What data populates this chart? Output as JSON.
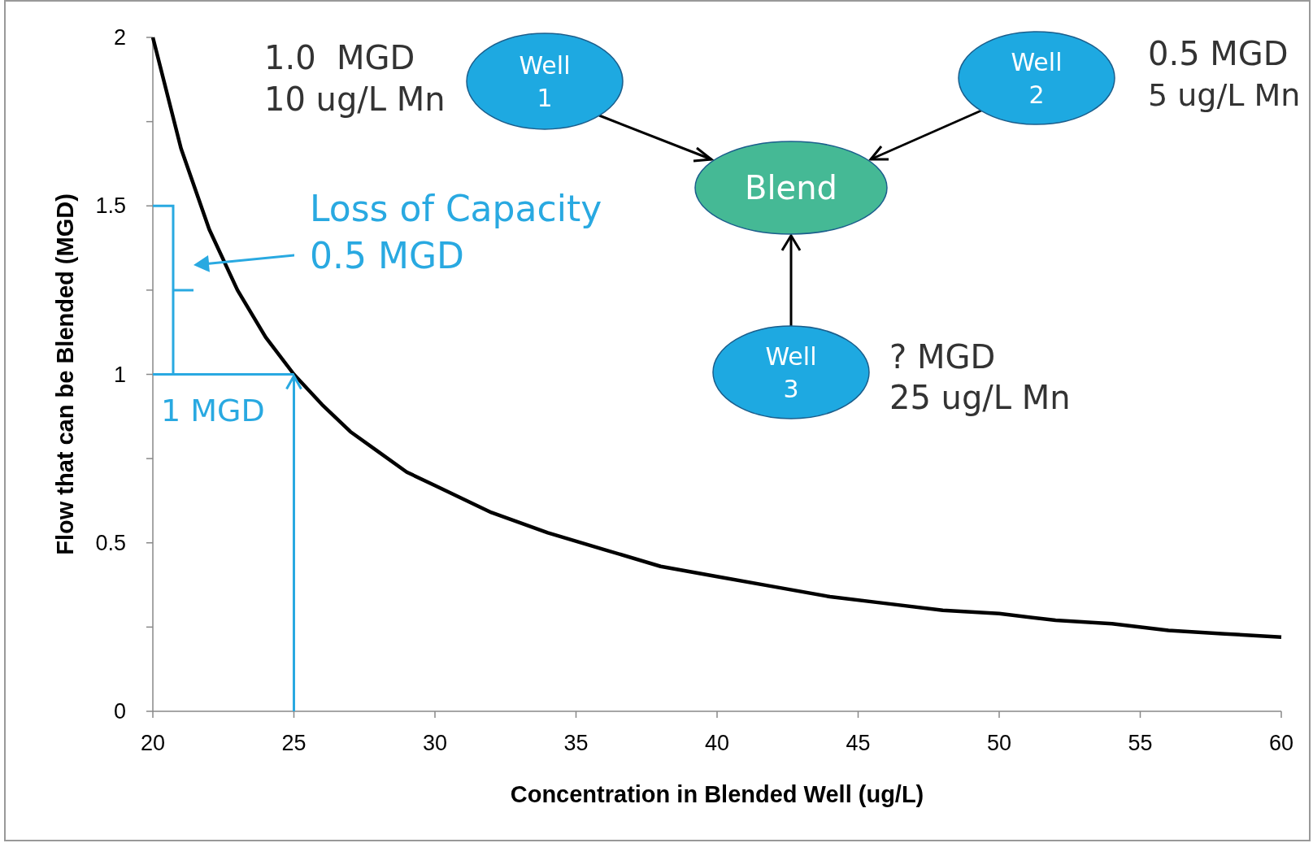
{
  "chart_data": {
    "type": "line",
    "xlabel": "Concentration in Blended Well (ug/L)",
    "ylabel": "Flow that can be Blended (MGD)",
    "x": [
      20,
      21,
      22,
      23,
      24,
      25,
      26,
      27,
      28,
      29,
      30,
      32,
      34,
      36,
      38,
      40,
      42,
      44,
      46,
      48,
      50,
      52,
      54,
      56,
      58,
      60
    ],
    "series": [
      {
        "color": "#000000",
        "values": [
          2,
          1.67,
          1.43,
          1.25,
          1.11,
          1,
          0.91,
          0.83,
          0.77,
          0.71,
          0.67,
          0.59,
          0.53,
          0.48,
          0.43,
          0.4,
          0.37,
          0.34,
          0.32,
          0.3,
          0.29,
          0.27,
          0.26,
          0.24,
          0.23,
          0.22
        ]
      }
    ],
    "xlim": [
      20,
      60
    ],
    "xticks": [
      20,
      25,
      30,
      35,
      40,
      45,
      50,
      55,
      60
    ],
    "ylim": [
      0,
      2
    ],
    "yticks": [
      0,
      {
        "value": 0.25,
        "label": null
      },
      0.5,
      {
        "value": 0.75,
        "label": null
      },
      1,
      {
        "value": 1.25,
        "label": null
      },
      1.5,
      {
        "value": 1.75,
        "label": null
      },
      2
    ],
    "grid": false,
    "marker": "none",
    "line_style": "solid",
    "annotations": [
      "1.0  MGD",
      "10 ug/L Mn",
      "0.5 MGD",
      "5 ug/L Mn",
      "? MGD",
      "25 ug/L Mn",
      "Well\n1",
      "Well\n2",
      "Well\n3",
      "Blend",
      "Loss of Capacity\n0.5 MGD",
      {
        "text": "1 MGD",
        "x": 25,
        "y": 1
      }
    ]
  }
}
